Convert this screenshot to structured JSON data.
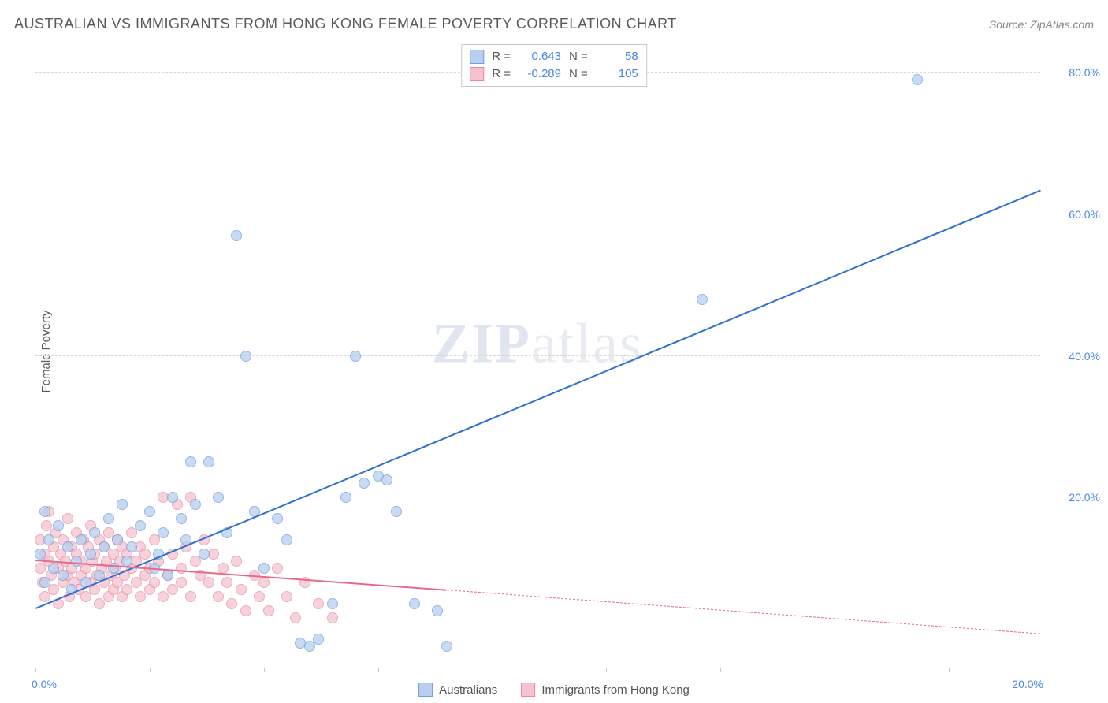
{
  "header": {
    "title": "AUSTRALIAN VS IMMIGRANTS FROM HONG KONG FEMALE POVERTY CORRELATION CHART",
    "source": "Source: ZipAtlas.com"
  },
  "axes": {
    "y_label": "Female Poverty",
    "xlim": [
      0,
      22
    ],
    "ylim": [
      -4,
      84
    ],
    "y_ticks": [
      20,
      40,
      60,
      80
    ],
    "y_tick_labels": [
      "20.0%",
      "40.0%",
      "60.0%",
      "80.0%"
    ],
    "x_start_label": "0.0%",
    "x_end_label": "20.0%",
    "x_tick_positions": [
      0,
      2.5,
      5,
      7.5,
      10,
      12.5,
      15,
      17.5,
      20
    ],
    "grid_color": "#d6d6d6",
    "axis_color": "#c8c8c8",
    "tick_label_color": "#4a86e8"
  },
  "watermark": {
    "part1": "ZIP",
    "part2": "atlas"
  },
  "series": {
    "australians": {
      "label": "Australians",
      "marker_fill": "#b8cff0",
      "marker_stroke": "#6f9fe0",
      "marker_radius": 7,
      "marker_opacity": 0.75,
      "line_color": "#2f6fd0",
      "line_width": 2,
      "R_label": "R =",
      "R": "0.643",
      "N_label": "N =",
      "N": "58",
      "trend": {
        "x1": 0,
        "y1": 4.5,
        "x2": 22,
        "y2": 63.5
      },
      "points": [
        {
          "x": 0.1,
          "y": 12
        },
        {
          "x": 0.2,
          "y": 18
        },
        {
          "x": 0.2,
          "y": 8
        },
        {
          "x": 0.3,
          "y": 14
        },
        {
          "x": 0.4,
          "y": 10
        },
        {
          "x": 0.5,
          "y": 16
        },
        {
          "x": 0.6,
          "y": 9
        },
        {
          "x": 0.7,
          "y": 13
        },
        {
          "x": 0.8,
          "y": 7
        },
        {
          "x": 0.9,
          "y": 11
        },
        {
          "x": 1.0,
          "y": 14
        },
        {
          "x": 1.1,
          "y": 8
        },
        {
          "x": 1.2,
          "y": 12
        },
        {
          "x": 1.3,
          "y": 15
        },
        {
          "x": 1.4,
          "y": 9
        },
        {
          "x": 1.5,
          "y": 13
        },
        {
          "x": 1.6,
          "y": 17
        },
        {
          "x": 1.7,
          "y": 10
        },
        {
          "x": 1.8,
          "y": 14
        },
        {
          "x": 1.9,
          "y": 19
        },
        {
          "x": 2.0,
          "y": 11
        },
        {
          "x": 2.1,
          "y": 13
        },
        {
          "x": 2.3,
          "y": 16
        },
        {
          "x": 2.5,
          "y": 18
        },
        {
          "x": 2.7,
          "y": 12
        },
        {
          "x": 2.8,
          "y": 15
        },
        {
          "x": 2.9,
          "y": 9
        },
        {
          "x": 3.0,
          "y": 20
        },
        {
          "x": 3.2,
          "y": 17
        },
        {
          "x": 3.3,
          "y": 14
        },
        {
          "x": 3.5,
          "y": 19
        },
        {
          "x": 3.7,
          "y": 12
        },
        {
          "x": 3.8,
          "y": 25
        },
        {
          "x": 4.0,
          "y": 20
        },
        {
          "x": 4.2,
          "y": 15
        },
        {
          "x": 4.4,
          "y": 57
        },
        {
          "x": 4.6,
          "y": 40
        },
        {
          "x": 5.0,
          "y": 10
        },
        {
          "x": 5.3,
          "y": 17
        },
        {
          "x": 5.5,
          "y": 14
        },
        {
          "x": 5.8,
          "y": -0.5
        },
        {
          "x": 6.0,
          "y": -1
        },
        {
          "x": 6.2,
          "y": 0
        },
        {
          "x": 6.5,
          "y": 5
        },
        {
          "x": 6.8,
          "y": 20
        },
        {
          "x": 7.0,
          "y": 40
        },
        {
          "x": 7.2,
          "y": 22
        },
        {
          "x": 7.5,
          "y": 23
        },
        {
          "x": 7.7,
          "y": 22.5
        },
        {
          "x": 7.9,
          "y": 18
        },
        {
          "x": 8.3,
          "y": 5
        },
        {
          "x": 8.8,
          "y": 4
        },
        {
          "x": 9.0,
          "y": -1
        },
        {
          "x": 14.6,
          "y": 48
        },
        {
          "x": 19.3,
          "y": 79
        },
        {
          "x": 3.4,
          "y": 25
        },
        {
          "x": 4.8,
          "y": 18
        },
        {
          "x": 2.6,
          "y": 10
        }
      ]
    },
    "hk": {
      "label": "Immigrants from Hong Kong",
      "marker_fill": "#f5c2cd",
      "marker_stroke": "#e88ba2",
      "marker_radius": 7,
      "marker_opacity": 0.72,
      "line_color": "#e66b88",
      "line_width": 2,
      "R_label": "R =",
      "R": "-0.289",
      "N_label": "N =",
      "N": "105",
      "trend_solid": {
        "x1": 0,
        "y1": 11.2,
        "x2": 9,
        "y2": 7.0
      },
      "trend_dash": {
        "x1": 9,
        "y1": 7.0,
        "x2": 22,
        "y2": 0.8
      },
      "points": [
        {
          "x": 0.1,
          "y": 10
        },
        {
          "x": 0.1,
          "y": 14
        },
        {
          "x": 0.15,
          "y": 8
        },
        {
          "x": 0.2,
          "y": 12
        },
        {
          "x": 0.2,
          "y": 6
        },
        {
          "x": 0.25,
          "y": 16
        },
        {
          "x": 0.3,
          "y": 11
        },
        {
          "x": 0.3,
          "y": 18
        },
        {
          "x": 0.35,
          "y": 9
        },
        {
          "x": 0.4,
          "y": 13
        },
        {
          "x": 0.4,
          "y": 7
        },
        {
          "x": 0.45,
          "y": 15
        },
        {
          "x": 0.5,
          "y": 10
        },
        {
          "x": 0.5,
          "y": 5
        },
        {
          "x": 0.55,
          "y": 12
        },
        {
          "x": 0.6,
          "y": 8
        },
        {
          "x": 0.6,
          "y": 14
        },
        {
          "x": 0.65,
          "y": 11
        },
        {
          "x": 0.7,
          "y": 9
        },
        {
          "x": 0.7,
          "y": 17
        },
        {
          "x": 0.75,
          "y": 6
        },
        {
          "x": 0.8,
          "y": 13
        },
        {
          "x": 0.8,
          "y": 10
        },
        {
          "x": 0.85,
          "y": 8
        },
        {
          "x": 0.9,
          "y": 12
        },
        {
          "x": 0.9,
          "y": 15
        },
        {
          "x": 0.95,
          "y": 7
        },
        {
          "x": 1.0,
          "y": 11
        },
        {
          "x": 1.0,
          "y": 9
        },
        {
          "x": 1.05,
          "y": 14
        },
        {
          "x": 1.1,
          "y": 6
        },
        {
          "x": 1.1,
          "y": 10
        },
        {
          "x": 1.15,
          "y": 13
        },
        {
          "x": 1.2,
          "y": 8
        },
        {
          "x": 1.2,
          "y": 16
        },
        {
          "x": 1.25,
          "y": 11
        },
        {
          "x": 1.3,
          "y": 7
        },
        {
          "x": 1.3,
          "y": 12
        },
        {
          "x": 1.35,
          "y": 9
        },
        {
          "x": 1.4,
          "y": 14
        },
        {
          "x": 1.4,
          "y": 5
        },
        {
          "x": 1.45,
          "y": 10
        },
        {
          "x": 1.5,
          "y": 8
        },
        {
          "x": 1.5,
          "y": 13
        },
        {
          "x": 1.55,
          "y": 11
        },
        {
          "x": 1.6,
          "y": 6
        },
        {
          "x": 1.6,
          "y": 15
        },
        {
          "x": 1.65,
          "y": 9
        },
        {
          "x": 1.7,
          "y": 12
        },
        {
          "x": 1.7,
          "y": 7
        },
        {
          "x": 1.75,
          "y": 10
        },
        {
          "x": 1.8,
          "y": 8
        },
        {
          "x": 1.8,
          "y": 14
        },
        {
          "x": 1.85,
          "y": 11
        },
        {
          "x": 1.9,
          "y": 6
        },
        {
          "x": 1.9,
          "y": 13
        },
        {
          "x": 1.95,
          "y": 9
        },
        {
          "x": 2.0,
          "y": 12
        },
        {
          "x": 2.0,
          "y": 7
        },
        {
          "x": 2.1,
          "y": 10
        },
        {
          "x": 2.1,
          "y": 15
        },
        {
          "x": 2.2,
          "y": 8
        },
        {
          "x": 2.2,
          "y": 11
        },
        {
          "x": 2.3,
          "y": 6
        },
        {
          "x": 2.3,
          "y": 13
        },
        {
          "x": 2.4,
          "y": 9
        },
        {
          "x": 2.4,
          "y": 12
        },
        {
          "x": 2.5,
          "y": 7
        },
        {
          "x": 2.5,
          "y": 10
        },
        {
          "x": 2.6,
          "y": 14
        },
        {
          "x": 2.6,
          "y": 8
        },
        {
          "x": 2.7,
          "y": 11
        },
        {
          "x": 2.8,
          "y": 20
        },
        {
          "x": 2.8,
          "y": 6
        },
        {
          "x": 2.9,
          "y": 9
        },
        {
          "x": 3.0,
          "y": 12
        },
        {
          "x": 3.0,
          "y": 7
        },
        {
          "x": 3.1,
          "y": 19
        },
        {
          "x": 3.2,
          "y": 10
        },
        {
          "x": 3.2,
          "y": 8
        },
        {
          "x": 3.3,
          "y": 13
        },
        {
          "x": 3.4,
          "y": 20
        },
        {
          "x": 3.4,
          "y": 6
        },
        {
          "x": 3.5,
          "y": 11
        },
        {
          "x": 3.6,
          "y": 9
        },
        {
          "x": 3.7,
          "y": 14
        },
        {
          "x": 3.8,
          "y": 8
        },
        {
          "x": 3.9,
          "y": 12
        },
        {
          "x": 4.0,
          "y": 6
        },
        {
          "x": 4.1,
          "y": 10
        },
        {
          "x": 4.2,
          "y": 8
        },
        {
          "x": 4.3,
          "y": 5
        },
        {
          "x": 4.4,
          "y": 11
        },
        {
          "x": 4.5,
          "y": 7
        },
        {
          "x": 4.6,
          "y": 4
        },
        {
          "x": 4.8,
          "y": 9
        },
        {
          "x": 4.9,
          "y": 6
        },
        {
          "x": 5.0,
          "y": 8
        },
        {
          "x": 5.1,
          "y": 4
        },
        {
          "x": 5.3,
          "y": 10
        },
        {
          "x": 5.5,
          "y": 6
        },
        {
          "x": 5.7,
          "y": 3
        },
        {
          "x": 5.9,
          "y": 8
        },
        {
          "x": 6.2,
          "y": 5
        },
        {
          "x": 6.5,
          "y": 3
        }
      ]
    }
  }
}
